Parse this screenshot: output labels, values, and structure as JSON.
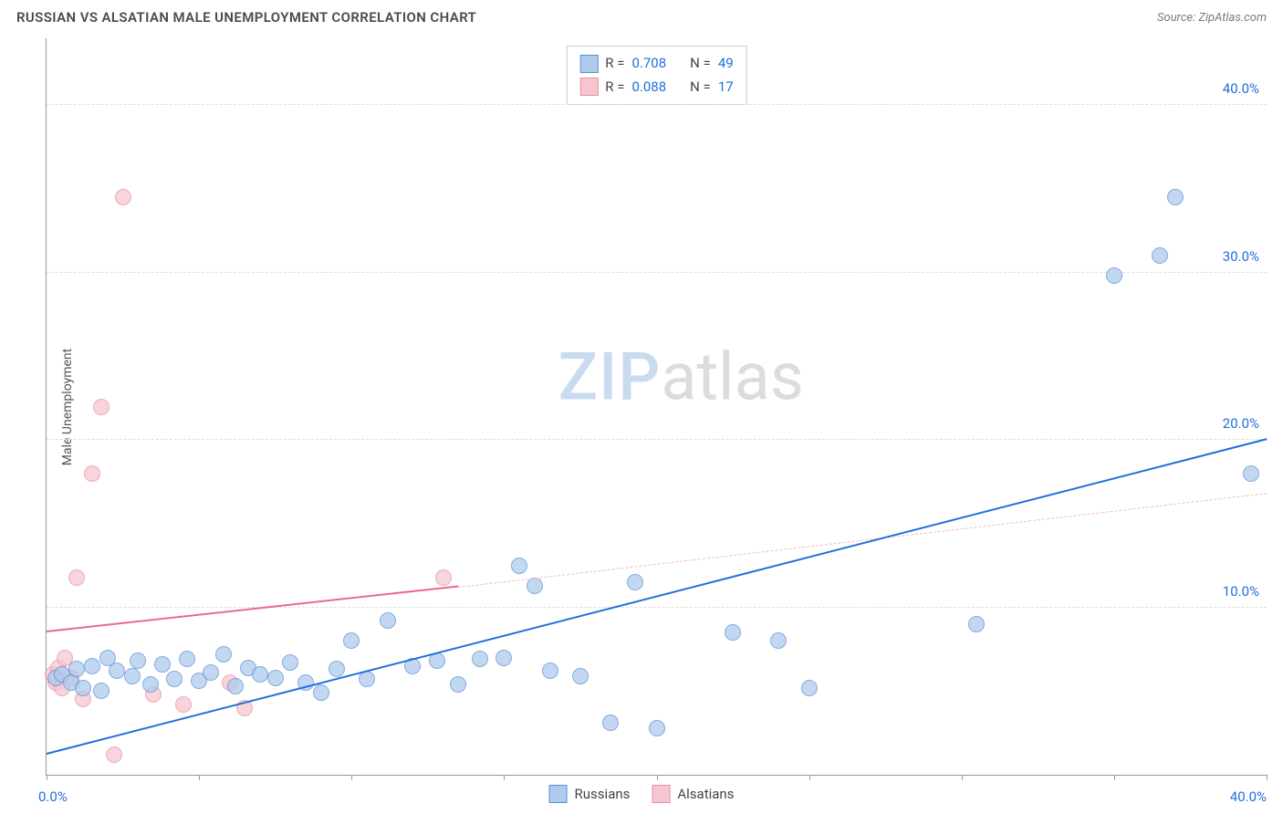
{
  "header": {
    "title": "RUSSIAN VS ALSATIAN MALE UNEMPLOYMENT CORRELATION CHART",
    "source_prefix": "Source: ",
    "source_name": "ZipAtlas.com"
  },
  "ylabel": "Male Unemployment",
  "watermark": {
    "part1": "ZIP",
    "part2": "atlas"
  },
  "chart": {
    "type": "scatter",
    "xlim": [
      0,
      40
    ],
    "ylim": [
      0,
      44
    ],
    "x_ticks": [
      0,
      5,
      10,
      15,
      20,
      25,
      30,
      35,
      40
    ],
    "x_tick_labels": {
      "0": "0.0%",
      "40": "40.0%"
    },
    "y_gridlines": [
      10,
      20,
      30,
      40
    ],
    "y_tick_labels": {
      "10": "10.0%",
      "20": "20.0%",
      "30": "30.0%",
      "40": "40.0%"
    },
    "grid_color": "#dddddd",
    "axis_color": "#999999",
    "background_color": "#ffffff",
    "xlabel_color": "#1e6fd9",
    "ylabel_tick_color": "#1e6fd9",
    "point_radius": 9,
    "point_border_width": 1.2
  },
  "series": {
    "russians": {
      "label": "Russians",
      "fill": "#aecbeb",
      "stroke": "#5b8fd6",
      "opacity": 0.75,
      "R": "0.708",
      "N": "49",
      "trend": {
        "x1": 0,
        "y1": 1.2,
        "x2": 40,
        "y2": 20.0,
        "color": "#1e6fd9",
        "width": 2.4,
        "dash": "solid"
      },
      "points": [
        [
          0.3,
          5.8
        ],
        [
          0.5,
          6.0
        ],
        [
          0.8,
          5.5
        ],
        [
          1.0,
          6.3
        ],
        [
          1.2,
          5.2
        ],
        [
          1.5,
          6.5
        ],
        [
          2.0,
          7.0
        ],
        [
          2.3,
          6.2
        ],
        [
          2.8,
          5.9
        ],
        [
          3.0,
          6.8
        ],
        [
          3.4,
          5.4
        ],
        [
          3.8,
          6.6
        ],
        [
          4.2,
          5.7
        ],
        [
          4.6,
          6.9
        ],
        [
          5.0,
          5.6
        ],
        [
          5.4,
          6.1
        ],
        [
          5.8,
          7.2
        ],
        [
          6.2,
          5.3
        ],
        [
          6.6,
          6.4
        ],
        [
          7.0,
          6.0
        ],
        [
          7.5,
          5.8
        ],
        [
          8.0,
          6.7
        ],
        [
          8.5,
          5.5
        ],
        [
          9.0,
          4.9
        ],
        [
          9.5,
          6.3
        ],
        [
          10.0,
          8.0
        ],
        [
          10.5,
          5.7
        ],
        [
          11.2,
          9.2
        ],
        [
          12.0,
          6.5
        ],
        [
          12.8,
          6.8
        ],
        [
          13.5,
          5.4
        ],
        [
          14.2,
          6.9
        ],
        [
          15.0,
          7.0
        ],
        [
          15.5,
          12.5
        ],
        [
          16.0,
          11.3
        ],
        [
          16.5,
          6.2
        ],
        [
          17.5,
          5.9
        ],
        [
          18.5,
          3.1
        ],
        [
          19.3,
          11.5
        ],
        [
          20.0,
          2.8
        ],
        [
          22.5,
          8.5
        ],
        [
          24.0,
          8.0
        ],
        [
          25.0,
          5.2
        ],
        [
          30.5,
          9.0
        ],
        [
          35.0,
          29.8
        ],
        [
          36.5,
          31.0
        ],
        [
          37.0,
          34.5
        ],
        [
          39.5,
          18.0
        ],
        [
          1.8,
          5.0
        ]
      ]
    },
    "alsatians": {
      "label": "Alsatians",
      "fill": "#f6c6d0",
      "stroke": "#e88fa3",
      "opacity": 0.75,
      "R": "0.088",
      "N": "17",
      "trend_solid": {
        "x1": 0,
        "y1": 8.5,
        "x2": 13.5,
        "y2": 11.2,
        "color": "#e86b8a",
        "width": 2.2,
        "dash": "solid"
      },
      "trend_dashed": {
        "x1": 13.5,
        "y1": 11.2,
        "x2": 40,
        "y2": 16.8,
        "color": "#f3b8c4",
        "width": 1.4,
        "dash": "dashed"
      },
      "points": [
        [
          0.2,
          6.0
        ],
        [
          0.3,
          5.5
        ],
        [
          0.4,
          6.4
        ],
        [
          0.5,
          5.2
        ],
        [
          0.6,
          7.0
        ],
        [
          0.8,
          5.8
        ],
        [
          1.0,
          11.8
        ],
        [
          1.2,
          4.5
        ],
        [
          1.5,
          18.0
        ],
        [
          1.8,
          22.0
        ],
        [
          2.2,
          1.2
        ],
        [
          2.5,
          34.5
        ],
        [
          3.5,
          4.8
        ],
        [
          4.5,
          4.2
        ],
        [
          6.0,
          5.5
        ],
        [
          6.5,
          4.0
        ],
        [
          13.0,
          11.8
        ]
      ]
    }
  },
  "legend_stats": {
    "r_label": "R =",
    "n_label": "N =",
    "value_color": "#1e6fd9"
  }
}
